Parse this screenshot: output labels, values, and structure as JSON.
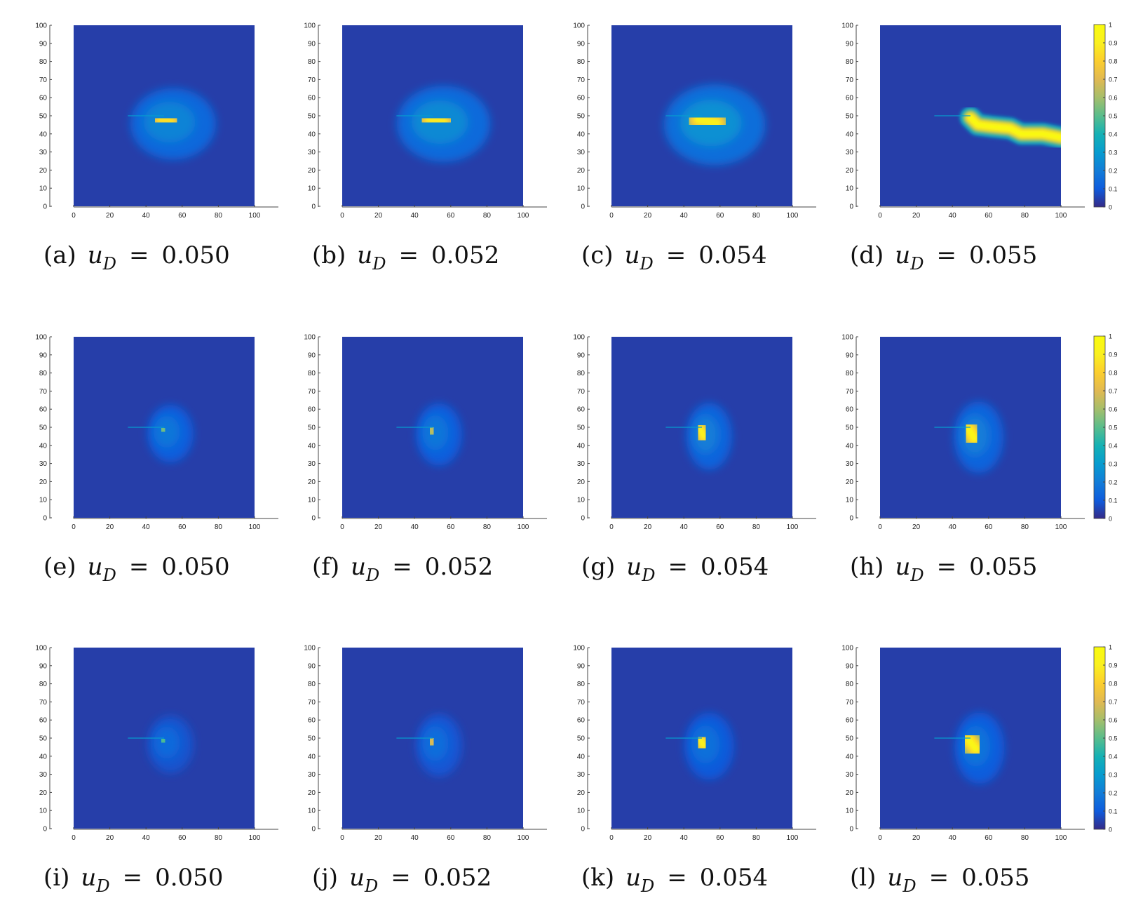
{
  "figure": {
    "colormap": "parula",
    "colorbar": {
      "range": [
        0,
        1
      ],
      "tick_labels": [
        "0",
        "0.1",
        "0.2",
        "0.3",
        "0.4",
        "0.5",
        "0.6",
        "0.7",
        "0.8",
        "0.9",
        "1"
      ]
    }
  },
  "chart_data": [
    {
      "type": "heatmap",
      "caption_label": "(a)",
      "caption_var": "u",
      "caption_sub": "D",
      "caption_value": "0.050",
      "xlim": [
        0,
        100
      ],
      "ylim": [
        0,
        100
      ],
      "x_ticks": [
        "0",
        "20",
        "40",
        "60",
        "80",
        "100"
      ],
      "y_ticks": [
        "0",
        "10",
        "20",
        "30",
        "40",
        "50",
        "60",
        "70",
        "80",
        "90",
        "100"
      ],
      "crack": {
        "x": [
          30,
          50
        ],
        "y": 50
      },
      "peak_value": 0.85,
      "damage_path": [
        [
          48,
          48
        ],
        [
          54,
          47
        ]
      ],
      "spread": [
        8,
        4.5
      ],
      "halo": 0.22
    },
    {
      "type": "heatmap",
      "caption_label": "(b)",
      "caption_var": "u",
      "caption_sub": "D",
      "caption_value": "0.052",
      "xlim": [
        0,
        100
      ],
      "ylim": [
        0,
        100
      ],
      "x_ticks": [
        "0",
        "20",
        "40",
        "60",
        "80",
        "100"
      ],
      "y_ticks": [
        "0",
        "10",
        "20",
        "30",
        "40",
        "50",
        "60",
        "70",
        "80",
        "90",
        "100"
      ],
      "crack": {
        "x": [
          30,
          50
        ],
        "y": 50
      },
      "peak_value": 0.88,
      "damage_path": [
        [
          48,
          48
        ],
        [
          56,
          47
        ]
      ],
      "spread": [
        9,
        5
      ],
      "halo": 0.24
    },
    {
      "type": "heatmap",
      "caption_label": "(c)",
      "caption_var": "u",
      "caption_sub": "D",
      "caption_value": "0.054",
      "xlim": [
        0,
        100
      ],
      "ylim": [
        0,
        100
      ],
      "x_ticks": [
        "0",
        "20",
        "40",
        "60",
        "80",
        "100"
      ],
      "y_ticks": [
        "0",
        "10",
        "20",
        "30",
        "40",
        "50",
        "60",
        "70",
        "80",
        "90",
        "100"
      ],
      "crack": {
        "x": [
          30,
          50
        ],
        "y": 50
      },
      "peak_value": 0.9,
      "damage_path": [
        [
          48,
          48
        ],
        [
          58,
          46
        ]
      ],
      "spread": [
        10,
        5.5
      ],
      "halo": 0.26
    },
    {
      "type": "heatmap",
      "caption_label": "(d)",
      "caption_var": "u",
      "caption_sub": "D",
      "caption_value": "0.055",
      "xlim": [
        0,
        100
      ],
      "ylim": [
        0,
        100
      ],
      "x_ticks": [
        "0",
        "20",
        "40",
        "60",
        "80",
        "100"
      ],
      "y_ticks": [
        "0",
        "10",
        "20",
        "30",
        "40",
        "50",
        "60",
        "70",
        "80",
        "90",
        "100"
      ],
      "crack": {
        "x": [
          30,
          50
        ],
        "y": 50
      },
      "peak_value": 1.0,
      "damage_path": [
        [
          50,
          49
        ],
        [
          54,
          45
        ],
        [
          62,
          44
        ],
        [
          72,
          43
        ],
        [
          78,
          40
        ],
        [
          90,
          40
        ],
        [
          100,
          38
        ]
      ],
      "spread": [
        3,
        3
      ],
      "halo": 0.0,
      "colorbar": true
    },
    {
      "type": "heatmap",
      "caption_label": "(e)",
      "caption_var": "u",
      "caption_sub": "D",
      "caption_value": "0.050",
      "xlim": [
        0,
        100
      ],
      "ylim": [
        0,
        100
      ],
      "x_ticks": [
        "0",
        "20",
        "40",
        "60",
        "80",
        "100"
      ],
      "y_ticks": [
        "0",
        "10",
        "20",
        "30",
        "40",
        "50",
        "60",
        "70",
        "80",
        "90",
        "100"
      ],
      "crack": {
        "x": [
          30,
          50
        ],
        "y": 50
      },
      "peak_value": 0.55,
      "damage_path": [
        [
          49,
          49
        ],
        [
          50,
          48
        ]
      ],
      "spread": [
        3,
        3
      ],
      "halo": 0.18
    },
    {
      "type": "heatmap",
      "caption_label": "(f)",
      "caption_var": "u",
      "caption_sub": "D",
      "caption_value": "0.052",
      "xlim": [
        0,
        100
      ],
      "ylim": [
        0,
        100
      ],
      "x_ticks": [
        "0",
        "20",
        "40",
        "60",
        "80",
        "100"
      ],
      "y_ticks": [
        "0",
        "10",
        "20",
        "30",
        "40",
        "50",
        "60",
        "70",
        "80",
        "90",
        "100"
      ],
      "crack": {
        "x": [
          30,
          50
        ],
        "y": 50
      },
      "peak_value": 0.65,
      "damage_path": [
        [
          49,
          49
        ],
        [
          50,
          47
        ]
      ],
      "spread": [
        3,
        3.5
      ],
      "halo": 0.18
    },
    {
      "type": "heatmap",
      "caption_label": "(g)",
      "caption_var": "u",
      "caption_sub": "D",
      "caption_value": "0.054",
      "xlim": [
        0,
        100
      ],
      "ylim": [
        0,
        100
      ],
      "x_ticks": [
        "0",
        "20",
        "40",
        "60",
        "80",
        "100"
      ],
      "y_ticks": [
        "0",
        "10",
        "20",
        "30",
        "40",
        "50",
        "60",
        "70",
        "80",
        "90",
        "100"
      ],
      "crack": {
        "x": [
          30,
          50
        ],
        "y": 50
      },
      "peak_value": 0.92,
      "damage_path": [
        [
          49,
          49
        ],
        [
          51,
          45
        ]
      ],
      "spread": [
        3,
        4
      ],
      "halo": 0.2
    },
    {
      "type": "heatmap",
      "caption_label": "(h)",
      "caption_var": "u",
      "caption_sub": "D",
      "caption_value": "0.055",
      "xlim": [
        0,
        100
      ],
      "ylim": [
        0,
        100
      ],
      "x_ticks": [
        "0",
        "20",
        "40",
        "60",
        "80",
        "100"
      ],
      "y_ticks": [
        "0",
        "10",
        "20",
        "30",
        "40",
        "50",
        "60",
        "70",
        "80",
        "90",
        "100"
      ],
      "crack": {
        "x": [
          30,
          50
        ],
        "y": 50
      },
      "peak_value": 0.95,
      "damage_path": [
        [
          49,
          49
        ],
        [
          52,
          44
        ]
      ],
      "spread": [
        3.5,
        4.5
      ],
      "halo": 0.2,
      "colorbar": true
    },
    {
      "type": "heatmap",
      "caption_label": "(i)",
      "caption_var": "u",
      "caption_sub": "D",
      "caption_value": "0.050",
      "xlim": [
        0,
        100
      ],
      "ylim": [
        0,
        100
      ],
      "x_ticks": [
        "0",
        "20",
        "40",
        "60",
        "80",
        "100"
      ],
      "y_ticks": [
        "0",
        "10",
        "20",
        "30",
        "40",
        "50",
        "60",
        "70",
        "80",
        "90",
        "100"
      ],
      "crack": {
        "x": [
          30,
          50
        ],
        "y": 50
      },
      "peak_value": 0.5,
      "damage_path": [
        [
          49,
          49
        ],
        [
          50,
          48
        ]
      ],
      "spread": [
        3,
        3
      ],
      "halo": 0.14
    },
    {
      "type": "heatmap",
      "caption_label": "(j)",
      "caption_var": "u",
      "caption_sub": "D",
      "caption_value": "0.052",
      "xlim": [
        0,
        100
      ],
      "ylim": [
        0,
        100
      ],
      "x_ticks": [
        "0",
        "20",
        "40",
        "60",
        "80",
        "100"
      ],
      "y_ticks": [
        "0",
        "10",
        "20",
        "30",
        "40",
        "50",
        "60",
        "70",
        "80",
        "90",
        "100"
      ],
      "crack": {
        "x": [
          30,
          50
        ],
        "y": 50
      },
      "peak_value": 0.7,
      "damage_path": [
        [
          49,
          49
        ],
        [
          50,
          47
        ]
      ],
      "spread": [
        3,
        3.5
      ],
      "halo": 0.15
    },
    {
      "type": "heatmap",
      "caption_label": "(k)",
      "caption_var": "u",
      "caption_sub": "D",
      "caption_value": "0.054",
      "xlim": [
        0,
        100
      ],
      "ylim": [
        0,
        100
      ],
      "x_ticks": [
        "0",
        "20",
        "40",
        "60",
        "80",
        "100"
      ],
      "y_ticks": [
        "0",
        "10",
        "20",
        "30",
        "40",
        "50",
        "60",
        "70",
        "80",
        "90",
        "100"
      ],
      "crack": {
        "x": [
          30,
          50
        ],
        "y": 50
      },
      "peak_value": 0.92,
      "damage_path": [
        [
          49,
          49
        ],
        [
          51,
          46
        ]
      ],
      "spread": [
        3.5,
        4
      ],
      "halo": 0.16
    },
    {
      "type": "heatmap",
      "caption_label": "(l)",
      "caption_var": "u",
      "caption_sub": "D",
      "caption_value": "0.055",
      "xlim": [
        0,
        100
      ],
      "ylim": [
        0,
        100
      ],
      "x_ticks": [
        "0",
        "20",
        "40",
        "60",
        "80",
        "100"
      ],
      "y_ticks": [
        "0",
        "10",
        "20",
        "30",
        "40",
        "50",
        "60",
        "70",
        "80",
        "90",
        "100"
      ],
      "crack": {
        "x": [
          30,
          50
        ],
        "y": 50
      },
      "peak_value": 0.96,
      "damage_path": [
        [
          49,
          49
        ],
        [
          53,
          44
        ]
      ],
      "spread": [
        3.5,
        4.5
      ],
      "halo": 0.17,
      "colorbar": true
    }
  ]
}
